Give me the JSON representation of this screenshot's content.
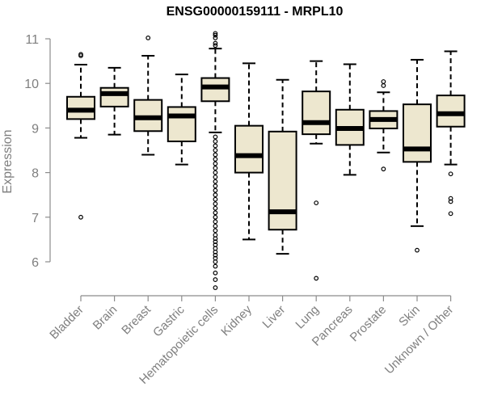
{
  "chart_data": {
    "type": "box",
    "title": "ENSG00000159111 - MRPL10",
    "xlabel": "",
    "ylabel": "Expression",
    "ylim": [
      5.3,
      11.2
    ],
    "yticks": [
      6,
      7,
      8,
      9,
      10,
      11
    ],
    "categories": [
      "Bladder",
      "Brain",
      "Breast",
      "Gastric",
      "Hematopoietic cells",
      "Kidney",
      "Liver",
      "Lung",
      "Pancreas",
      "Prostate",
      "Skin",
      "Unknown / Other"
    ],
    "boxes": [
      {
        "category": "Bladder",
        "whisker_low": 8.78,
        "q1": 9.2,
        "median": 9.4,
        "q3": 9.7,
        "whisker_high": 10.42,
        "outliers": [
          7.0,
          10.62,
          10.65
        ]
      },
      {
        "category": "Brain",
        "whisker_low": 8.85,
        "q1": 9.48,
        "median": 9.77,
        "q3": 9.9,
        "whisker_high": 10.35,
        "outliers": []
      },
      {
        "category": "Breast",
        "whisker_low": 8.4,
        "q1": 8.93,
        "median": 9.23,
        "q3": 9.63,
        "whisker_high": 10.62,
        "outliers": [
          11.02
        ]
      },
      {
        "category": "Gastric",
        "whisker_low": 8.18,
        "q1": 8.7,
        "median": 9.27,
        "q3": 9.47,
        "whisker_high": 10.2,
        "outliers": []
      },
      {
        "category": "Hematopoietic cells",
        "whisker_low": 8.9,
        "q1": 9.6,
        "median": 9.92,
        "q3": 10.12,
        "whisker_high": 10.78,
        "outliers": [
          5.42,
          5.6,
          5.75,
          5.9,
          6.0,
          6.08,
          6.15,
          6.22,
          6.3,
          6.38,
          6.45,
          6.52,
          6.6,
          6.7,
          6.8,
          6.9,
          7.0,
          7.1,
          7.2,
          7.3,
          7.4,
          7.5,
          7.6,
          7.7,
          7.8,
          7.9,
          8.0,
          8.1,
          8.2,
          8.3,
          8.4,
          8.5,
          8.6,
          8.7,
          8.8,
          10.85,
          10.9,
          11.02,
          11.08,
          11.12
        ]
      },
      {
        "category": "Kidney",
        "whisker_low": 6.5,
        "q1": 8.0,
        "median": 8.38,
        "q3": 9.05,
        "whisker_high": 10.45,
        "outliers": []
      },
      {
        "category": "Liver",
        "whisker_low": 6.18,
        "q1": 6.72,
        "median": 7.12,
        "q3": 8.92,
        "whisker_high": 10.08,
        "outliers": []
      },
      {
        "category": "Lung",
        "whisker_low": 8.65,
        "q1": 8.86,
        "median": 9.12,
        "q3": 9.82,
        "whisker_high": 10.5,
        "outliers": [
          5.63,
          7.32
        ]
      },
      {
        "category": "Pancreas",
        "whisker_low": 7.95,
        "q1": 8.62,
        "median": 8.99,
        "q3": 9.41,
        "whisker_high": 10.43,
        "outliers": []
      },
      {
        "category": "Prostate",
        "whisker_low": 8.45,
        "q1": 8.99,
        "median": 9.19,
        "q3": 9.38,
        "whisker_high": 9.8,
        "outliers": [
          8.08,
          9.95,
          10.04
        ]
      },
      {
        "category": "Skin",
        "whisker_low": 6.8,
        "q1": 8.24,
        "median": 8.53,
        "q3": 9.53,
        "whisker_high": 10.53,
        "outliers": [
          6.26
        ]
      },
      {
        "category": "Unknown / Other",
        "whisker_low": 8.18,
        "q1": 9.03,
        "median": 9.32,
        "q3": 9.73,
        "whisker_high": 10.72,
        "outliers": [
          7.08,
          7.35,
          7.42,
          7.97
        ]
      }
    ],
    "grid": false,
    "colors": {
      "box_fill": "#ede7cf",
      "box_stroke": "#000000",
      "axis": "#8c8c8c",
      "tick_label": "#7f7f7f"
    }
  }
}
